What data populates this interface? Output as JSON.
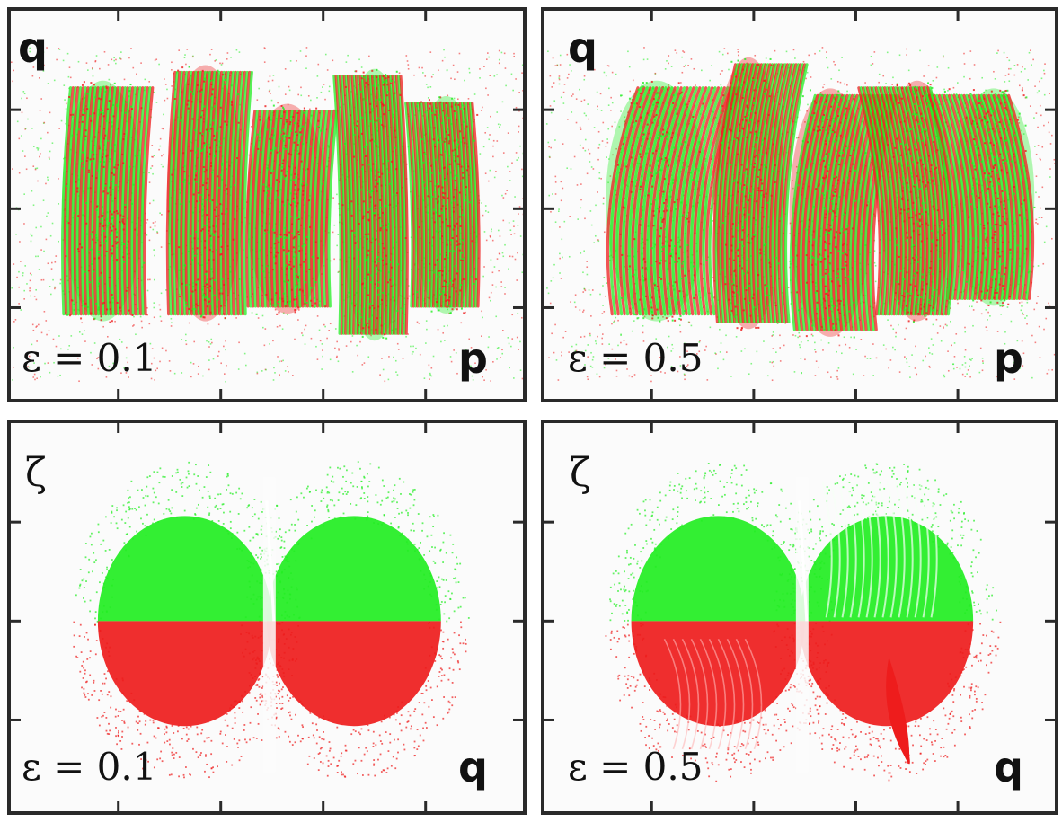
{
  "chart_data": [
    {
      "type": "scatter",
      "panel": "top-left",
      "ylabel": "q",
      "xlabel": "p",
      "annotation": "ε = 0.1",
      "epsilon": 0.1,
      "series": [
        {
          "color": "#ee1c1c"
        },
        {
          "color": "#22ee22"
        }
      ],
      "grid": false
    },
    {
      "type": "scatter",
      "panel": "top-right",
      "ylabel": "q",
      "xlabel": "p",
      "annotation": "ε = 0.5",
      "epsilon": 0.5,
      "series": [
        {
          "color": "#ee1c1c"
        },
        {
          "color": "#22ee22"
        }
      ],
      "grid": false
    },
    {
      "type": "scatter",
      "panel": "bottom-left",
      "ylabel": "ζ",
      "xlabel": "q",
      "annotation": "ε = 0.1",
      "epsilon": 0.1,
      "series": [
        {
          "color": "#22ee22"
        },
        {
          "color": "#ee1c1c"
        }
      ],
      "grid": false
    },
    {
      "type": "scatter",
      "panel": "bottom-right",
      "ylabel": "ζ",
      "xlabel": "q",
      "annotation": "ε = 0.5",
      "epsilon": 0.5,
      "series": [
        {
          "color": "#22ee22"
        },
        {
          "color": "#ee1c1c"
        }
      ],
      "grid": false
    }
  ]
}
